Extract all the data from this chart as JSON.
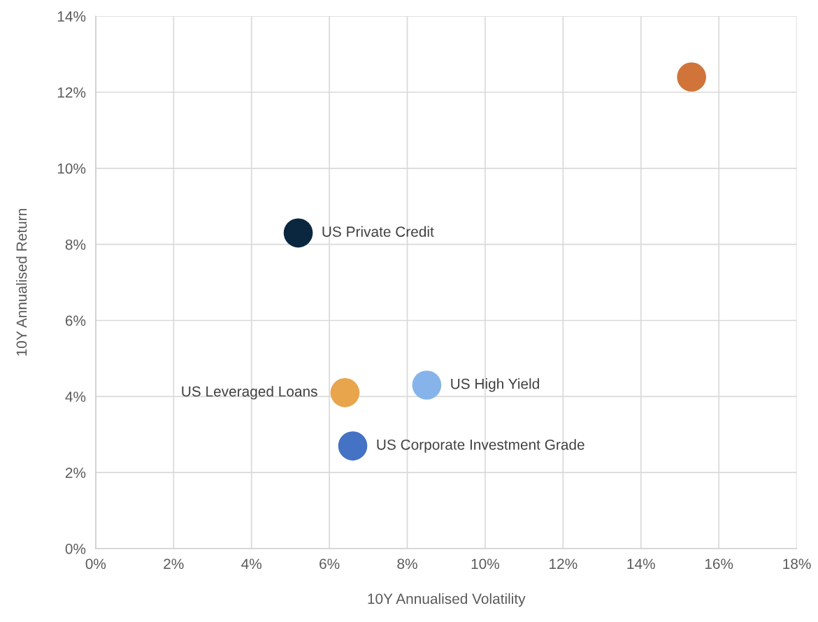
{
  "chart_data": {
    "type": "scatter",
    "xlabel": "10Y Annualised Volatility",
    "ylabel": "10Y Annualised Return",
    "series": [
      {
        "name": "US Private Credit",
        "color": "#0b2740",
        "x": [
          5.2
        ],
        "values": [
          8.3
        ]
      },
      {
        "name": "US Leveraged Loans",
        "color": "#e8a54b",
        "x": [
          6.4
        ],
        "values": [
          4.1
        ]
      },
      {
        "name": "US High Yield",
        "color": "#86b4ea",
        "x": [
          8.5
        ],
        "values": [
          4.3
        ]
      },
      {
        "name": "US Corporate Investment Grade",
        "color": "#4472c4",
        "x": [
          6.6
        ],
        "values": [
          2.7
        ]
      },
      {
        "color": "#d0743a",
        "x": [
          15.3
        ],
        "values": [
          12.4
        ]
      }
    ],
    "xlim": [
      0,
      18
    ],
    "ylim": [
      0,
      14
    ],
    "xticks": [
      {
        "value": 0,
        "label": "0%"
      },
      {
        "value": 2,
        "label": "2%"
      },
      {
        "value": 4,
        "label": "4%"
      },
      {
        "value": 6,
        "label": "6%"
      },
      {
        "value": 8,
        "label": "8%"
      },
      {
        "value": 10,
        "label": "10%"
      },
      {
        "value": 12,
        "label": "12%"
      },
      {
        "value": 14,
        "label": "14%"
      },
      {
        "value": 16,
        "label": "16%"
      },
      {
        "value": 18,
        "label": "18%"
      }
    ],
    "yticks": [
      {
        "value": 0,
        "label": "0%"
      },
      {
        "value": 2,
        "label": "2%"
      },
      {
        "value": 4,
        "label": "4%"
      },
      {
        "value": 6,
        "label": "6%"
      },
      {
        "value": 8,
        "label": "8%"
      },
      {
        "value": 10,
        "label": "10%"
      },
      {
        "value": 12,
        "label": "12%"
      },
      {
        "value": 14,
        "label": "14%"
      }
    ],
    "grid": true,
    "marker": "circle"
  }
}
